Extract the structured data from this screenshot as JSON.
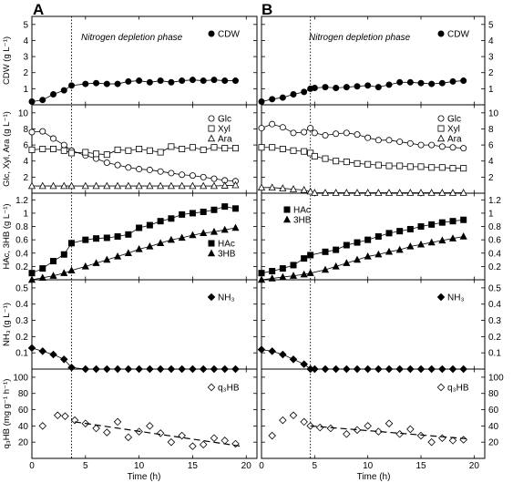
{
  "figure": {
    "x_label": "Time (h)",
    "phase_label": "Nitrogen depletion phase",
    "panels": [
      {
        "letter": "A",
        "depletion_time": 3.7
      },
      {
        "letter": "B",
        "depletion_time": 4.6
      }
    ]
  },
  "rows": [
    {
      "key": "cdw",
      "ylabel": "CDW (g L⁻¹)",
      "ylim": [
        0,
        5.5
      ],
      "ticks": [
        1,
        2,
        3,
        4,
        5
      ],
      "legend_position": "top-right"
    },
    {
      "key": "sugars",
      "ylabel": "Glc, Xyl, Ara (g L⁻¹)",
      "ylim": [
        0,
        11
      ],
      "ticks": [
        2,
        4,
        6,
        8,
        10
      ],
      "legend_position": "top-right"
    },
    {
      "key": "acids",
      "ylabel": "HAc, 3HB (g L⁻¹)",
      "ylim": [
        0,
        1.3
      ],
      "ticks": [
        0.2,
        0.4,
        0.6,
        0.8,
        1.0,
        1.2
      ],
      "legend_position": "A: right; B: left"
    },
    {
      "key": "nh3",
      "ylabel": "NH₃ (g L⁻¹)",
      "ylim": [
        0,
        0.55
      ],
      "ticks": [
        0.1,
        0.2,
        0.3,
        0.4,
        0.5
      ],
      "legend_position": "right"
    },
    {
      "key": "q3hb",
      "ylabel": "q₃HB (mg g⁻¹ h⁻¹)",
      "ylim": [
        0,
        110
      ],
      "ticks": [
        20,
        40,
        60,
        80,
        100
      ],
      "legend_position": "top-right"
    }
  ],
  "chart_data": [
    {
      "panel": "A",
      "type": "line",
      "xlabel": "Time (h)",
      "xlim": [
        0,
        21
      ],
      "xticks": [
        0,
        5,
        10,
        15,
        20
      ],
      "series": [
        {
          "row": "cdw",
          "name": "CDW",
          "marker": "circle-filled",
          "x": [
            0,
            1,
            2,
            3,
            3.7,
            5,
            6,
            7,
            8,
            9,
            10,
            11,
            12,
            13,
            14,
            15,
            16,
            17,
            18,
            19
          ],
          "y": [
            0.2,
            0.3,
            0.65,
            0.9,
            1.2,
            1.3,
            1.35,
            1.3,
            1.3,
            1.45,
            1.5,
            1.4,
            1.5,
            1.4,
            1.5,
            1.55,
            1.5,
            1.55,
            1.5,
            1.5
          ]
        },
        {
          "row": "sugars",
          "name": "Glc",
          "marker": "circle-open",
          "x": [
            0,
            1,
            2,
            3,
            3.7,
            5,
            6,
            7,
            8,
            9,
            10,
            11,
            12,
            13,
            14,
            15,
            16,
            17,
            18,
            19
          ],
          "y": [
            7.6,
            7.7,
            6.8,
            6.0,
            5.3,
            4.7,
            4.3,
            3.8,
            3.5,
            3.2,
            3.0,
            2.9,
            2.7,
            2.5,
            2.3,
            2.2,
            2.0,
            1.8,
            1.6,
            1.5
          ]
        },
        {
          "row": "sugars",
          "name": "Xyl",
          "marker": "square-open",
          "x": [
            0,
            1,
            2,
            3,
            3.7,
            5,
            6,
            7,
            8,
            9,
            10,
            11,
            12,
            13,
            14,
            15,
            16,
            17,
            18,
            19
          ],
          "y": [
            5.4,
            5.5,
            5.5,
            5.3,
            5.0,
            5.1,
            4.9,
            4.8,
            5.4,
            5.3,
            5.5,
            5.3,
            5.1,
            5.8,
            5.5,
            5.7,
            5.4,
            5.7,
            5.6,
            5.6
          ]
        },
        {
          "row": "sugars",
          "name": "Ara",
          "marker": "triangle-open",
          "x": [
            0,
            1,
            2,
            3,
            3.7,
            5,
            6,
            7,
            8,
            9,
            10,
            11,
            12,
            13,
            14,
            15,
            16,
            17,
            18,
            19
          ],
          "y": [
            0.9,
            0.9,
            0.9,
            0.9,
            0.9,
            0.9,
            0.9,
            0.9,
            0.9,
            0.9,
            0.9,
            0.9,
            0.9,
            0.9,
            0.9,
            0.9,
            0.9,
            0.9,
            0.95,
            1.0
          ]
        },
        {
          "row": "acids",
          "name": "HAc",
          "marker": "square-filled",
          "x": [
            0,
            1,
            2,
            3,
            3.7,
            5,
            6,
            7,
            8,
            9,
            10,
            11,
            12,
            13,
            14,
            15,
            16,
            17,
            18,
            19
          ],
          "y": [
            0.1,
            0.17,
            0.28,
            0.38,
            0.55,
            0.6,
            0.62,
            0.63,
            0.65,
            0.68,
            0.78,
            0.82,
            0.88,
            0.92,
            0.98,
            1.0,
            1.02,
            1.05,
            1.1,
            1.07
          ]
        },
        {
          "row": "acids",
          "name": "3HB",
          "marker": "triangle-filled",
          "x": [
            0,
            1,
            2,
            3,
            3.7,
            5,
            6,
            7,
            8,
            9,
            10,
            11,
            12,
            13,
            14,
            15,
            16,
            17,
            18,
            19
          ],
          "y": [
            0.0,
            0.03,
            0.06,
            0.1,
            0.14,
            0.2,
            0.25,
            0.3,
            0.35,
            0.4,
            0.46,
            0.5,
            0.55,
            0.6,
            0.63,
            0.67,
            0.7,
            0.72,
            0.75,
            0.78
          ]
        },
        {
          "row": "nh3",
          "name": "NH₃",
          "marker": "diamond-filled",
          "x": [
            0,
            1,
            2,
            3,
            3.7,
            5,
            6,
            7,
            8,
            9,
            10,
            11,
            12,
            13,
            14,
            15,
            16,
            17,
            18,
            19
          ],
          "y": [
            0.13,
            0.11,
            0.09,
            0.06,
            0.01,
            0.0,
            0.0,
            0.0,
            0.0,
            0.0,
            0.0,
            0.0,
            0.0,
            0.0,
            0.0,
            0.0,
            0.0,
            0.0,
            0.0,
            0.0
          ]
        },
        {
          "row": "q3hb",
          "name": "q₃HB",
          "marker": "diamond-open",
          "x": [
            1,
            2.4,
            3.1,
            4,
            5,
            6,
            7,
            8,
            9,
            10,
            11,
            12,
            13,
            14,
            15,
            16,
            17,
            18,
            19
          ],
          "y": [
            40,
            53,
            52,
            47,
            43,
            37,
            32,
            45,
            26,
            33,
            40,
            31,
            20,
            28,
            15,
            17,
            25,
            22,
            18
          ]
        },
        {
          "row": "q3hb",
          "name": "trend",
          "marker": "none",
          "style": "dashed",
          "x": [
            4,
            19.5
          ],
          "y": [
            45,
            15
          ]
        }
      ]
    },
    {
      "panel": "B",
      "type": "line",
      "xlabel": "Time (h)",
      "xlim": [
        0,
        21
      ],
      "xticks": [
        0,
        5,
        10,
        15,
        20
      ],
      "series": [
        {
          "row": "cdw",
          "name": "CDW",
          "marker": "circle-filled",
          "x": [
            0,
            1,
            2,
            3,
            4,
            4.6,
            5,
            6,
            7,
            8,
            9,
            10,
            11,
            12,
            13,
            14,
            15,
            16,
            17,
            18,
            19
          ],
          "y": [
            0.2,
            0.35,
            0.45,
            0.65,
            0.8,
            1.0,
            1.05,
            1.1,
            1.05,
            1.1,
            1.15,
            1.2,
            1.1,
            1.25,
            1.4,
            1.4,
            1.35,
            1.3,
            1.35,
            1.45,
            1.5
          ]
        },
        {
          "row": "sugars",
          "name": "Glc",
          "marker": "circle-open",
          "x": [
            0,
            1,
            2,
            3,
            4,
            4.6,
            5,
            6,
            7,
            8,
            9,
            10,
            11,
            12,
            13,
            14,
            15,
            16,
            17,
            18,
            19
          ],
          "y": [
            8.1,
            8.6,
            8.2,
            7.5,
            7.6,
            8.1,
            7.5,
            7.2,
            7.4,
            7.5,
            7.3,
            6.9,
            6.6,
            6.6,
            6.4,
            6.2,
            6.0,
            6.0,
            5.8,
            5.7,
            5.6
          ]
        },
        {
          "row": "sugars",
          "name": "Xyl",
          "marker": "square-open",
          "x": [
            0,
            1,
            2,
            3,
            4,
            4.6,
            5,
            6,
            7,
            8,
            9,
            10,
            11,
            12,
            13,
            14,
            15,
            16,
            17,
            18,
            19
          ],
          "y": [
            5.7,
            5.7,
            5.5,
            5.3,
            5.2,
            5.0,
            4.6,
            4.3,
            4.0,
            3.9,
            3.7,
            3.6,
            3.5,
            3.4,
            3.4,
            3.3,
            3.3,
            3.2,
            3.2,
            3.1,
            3.1
          ]
        },
        {
          "row": "sugars",
          "name": "Ara",
          "marker": "triangle-open",
          "x": [
            0,
            1,
            2,
            3,
            4,
            4.6,
            5,
            6,
            7,
            8,
            9,
            10,
            11,
            12,
            13,
            14,
            15,
            16,
            17,
            18,
            19
          ],
          "y": [
            0.7,
            0.7,
            0.6,
            0.5,
            0.4,
            0.2,
            0.05,
            0.05,
            0.05,
            0.05,
            0.05,
            0.05,
            0.05,
            0.05,
            0.05,
            0.05,
            0.05,
            0.05,
            0.05,
            0.05,
            0.05
          ]
        },
        {
          "row": "acids",
          "name": "HAc",
          "marker": "square-filled",
          "x": [
            0,
            1,
            2,
            3,
            4,
            4.6,
            6,
            7,
            8,
            9,
            10,
            11,
            12,
            13,
            14,
            15,
            16,
            17,
            18,
            19
          ],
          "y": [
            0.1,
            0.13,
            0.17,
            0.22,
            0.32,
            0.37,
            0.42,
            0.45,
            0.52,
            0.56,
            0.6,
            0.65,
            0.7,
            0.73,
            0.76,
            0.8,
            0.83,
            0.86,
            0.88,
            0.9
          ]
        },
        {
          "row": "acids",
          "name": "3HB",
          "marker": "triangle-filled",
          "x": [
            0,
            1,
            2,
            3,
            4,
            4.6,
            6,
            7,
            8,
            9,
            10,
            11,
            12,
            13,
            14,
            15,
            16,
            17,
            18,
            19
          ],
          "y": [
            0.0,
            0.02,
            0.04,
            0.06,
            0.08,
            0.1,
            0.15,
            0.2,
            0.25,
            0.3,
            0.35,
            0.38,
            0.42,
            0.45,
            0.5,
            0.53,
            0.56,
            0.59,
            0.62,
            0.65
          ]
        },
        {
          "row": "nh3",
          "name": "NH₃",
          "marker": "diamond-filled",
          "x": [
            0,
            1,
            2,
            3,
            4,
            4.6,
            5,
            6,
            7,
            8,
            9,
            10,
            11,
            12,
            13,
            14,
            15,
            16,
            17,
            18,
            19
          ],
          "y": [
            0.12,
            0.11,
            0.09,
            0.06,
            0.03,
            0.0,
            0.0,
            0.0,
            0.0,
            0.0,
            0.0,
            0.0,
            0.0,
            0.0,
            0.0,
            0.0,
            0.0,
            0.0,
            0.0,
            0.0,
            0.0
          ]
        },
        {
          "row": "q3hb",
          "name": "q₃HB",
          "marker": "diamond-open",
          "x": [
            1,
            2,
            3,
            4,
            4.6,
            5.5,
            6.5,
            8,
            9,
            10,
            11,
            12,
            13,
            14,
            15,
            16,
            17,
            18,
            19
          ],
          "y": [
            28,
            47,
            53,
            45,
            40,
            38,
            37,
            30,
            35,
            40,
            33,
            43,
            30,
            36,
            28,
            20,
            25,
            22,
            23
          ]
        },
        {
          "row": "q3hb",
          "name": "trend",
          "marker": "none",
          "style": "dashed",
          "x": [
            4.6,
            19.5
          ],
          "y": [
            40,
            24
          ]
        }
      ]
    }
  ]
}
